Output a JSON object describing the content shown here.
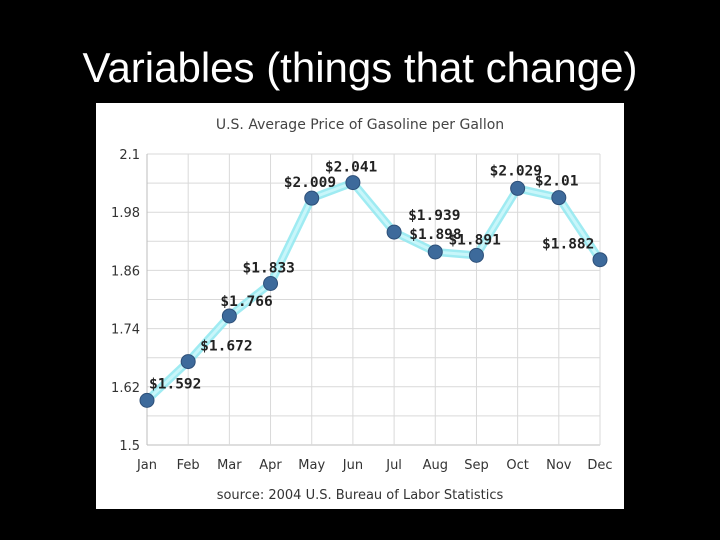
{
  "slide": {
    "title": "Variables (things that change)"
  },
  "colors": {
    "background": "#000000",
    "panel": "#ffffff",
    "line_glow": "#8ee8f0",
    "line_core": "#c8f6fa",
    "marker": "#3d6a9b"
  },
  "chart_data": {
    "type": "line",
    "title": "U.S. Average Price of Gasoline per Gallon",
    "source": "source: 2004 U.S. Bureau of Labor Statistics",
    "categories": [
      "Jan",
      "Feb",
      "Mar",
      "Apr",
      "May",
      "Jun",
      "Jul",
      "Aug",
      "Sep",
      "Oct",
      "Nov",
      "Dec"
    ],
    "series": [
      {
        "values": [
          1.592,
          1.672,
          1.766,
          1.833,
          2.009,
          2.041,
          1.939,
          1.898,
          1.891,
          2.029,
          2.01,
          1.882
        ],
        "labels": [
          "$1.592",
          "$1.672",
          "$1.766",
          "$1.833",
          "$2.009",
          "$2.041",
          "$1.939",
          "$1.898",
          "$1.891",
          "$2.029",
          "$2.01",
          "$1.882"
        ]
      }
    ],
    "ylim": [
      1.5,
      2.1
    ],
    "yticks": [
      "1.5",
      "1.62",
      "1.74",
      "1.86",
      "1.98",
      "2.1"
    ],
    "ytick_values": [
      1.5,
      1.62,
      1.74,
      1.86,
      1.98,
      2.1
    ],
    "grid": true,
    "legend": "none"
  }
}
